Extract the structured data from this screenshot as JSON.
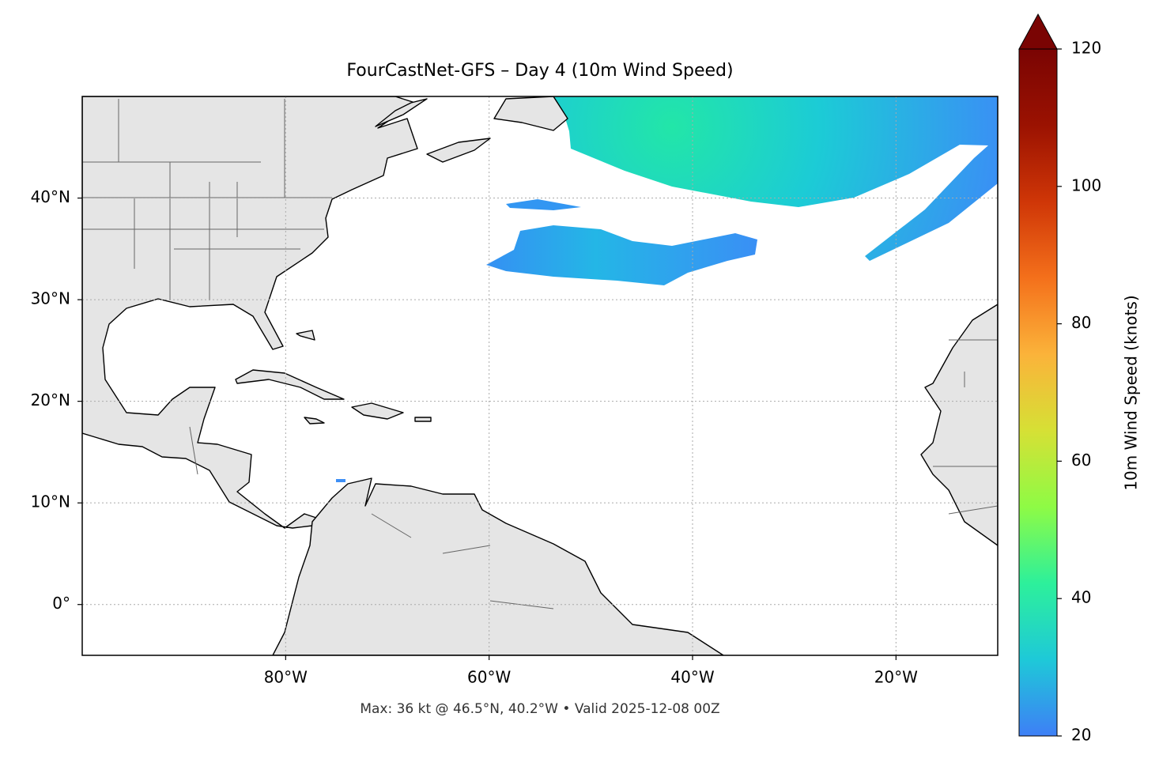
{
  "chart_data": {
    "type": "map",
    "title": "FourCastNet-GFS – Day 4 (10m Wind Speed)",
    "footnote": "Max: 36 kt @ 46.5°N, 40.2°W • Valid 2025-12-08 00Z",
    "xlim": [
      -100,
      -10
    ],
    "ylim": [
      -5,
      50
    ],
    "xticks": [
      {
        "value": -80,
        "label": "80°W"
      },
      {
        "value": -60,
        "label": "60°W"
      },
      {
        "value": -40,
        "label": "40°W"
      },
      {
        "value": -20,
        "label": "20°W"
      }
    ],
    "yticks": [
      {
        "value": 0,
        "label": "0°"
      },
      {
        "value": 10,
        "label": "10°N"
      },
      {
        "value": 20,
        "label": "20°N"
      },
      {
        "value": 30,
        "label": "30°N"
      },
      {
        "value": 40,
        "label": "40°N"
      }
    ],
    "grid": true,
    "colorbar": {
      "label": "10m Wind Speed (knots)",
      "lim": [
        20,
        120
      ],
      "ticks": [
        20,
        40,
        60,
        80,
        100,
        120
      ],
      "colormap": [
        "#3e7ff6",
        "#1ec9d8",
        "#2df09b",
        "#8efb45",
        "#d6e035",
        "#fbb33a",
        "#f4701b",
        "#cf3607",
        "#9b1201",
        "#7a0403"
      ],
      "extend": "max"
    }
  }
}
